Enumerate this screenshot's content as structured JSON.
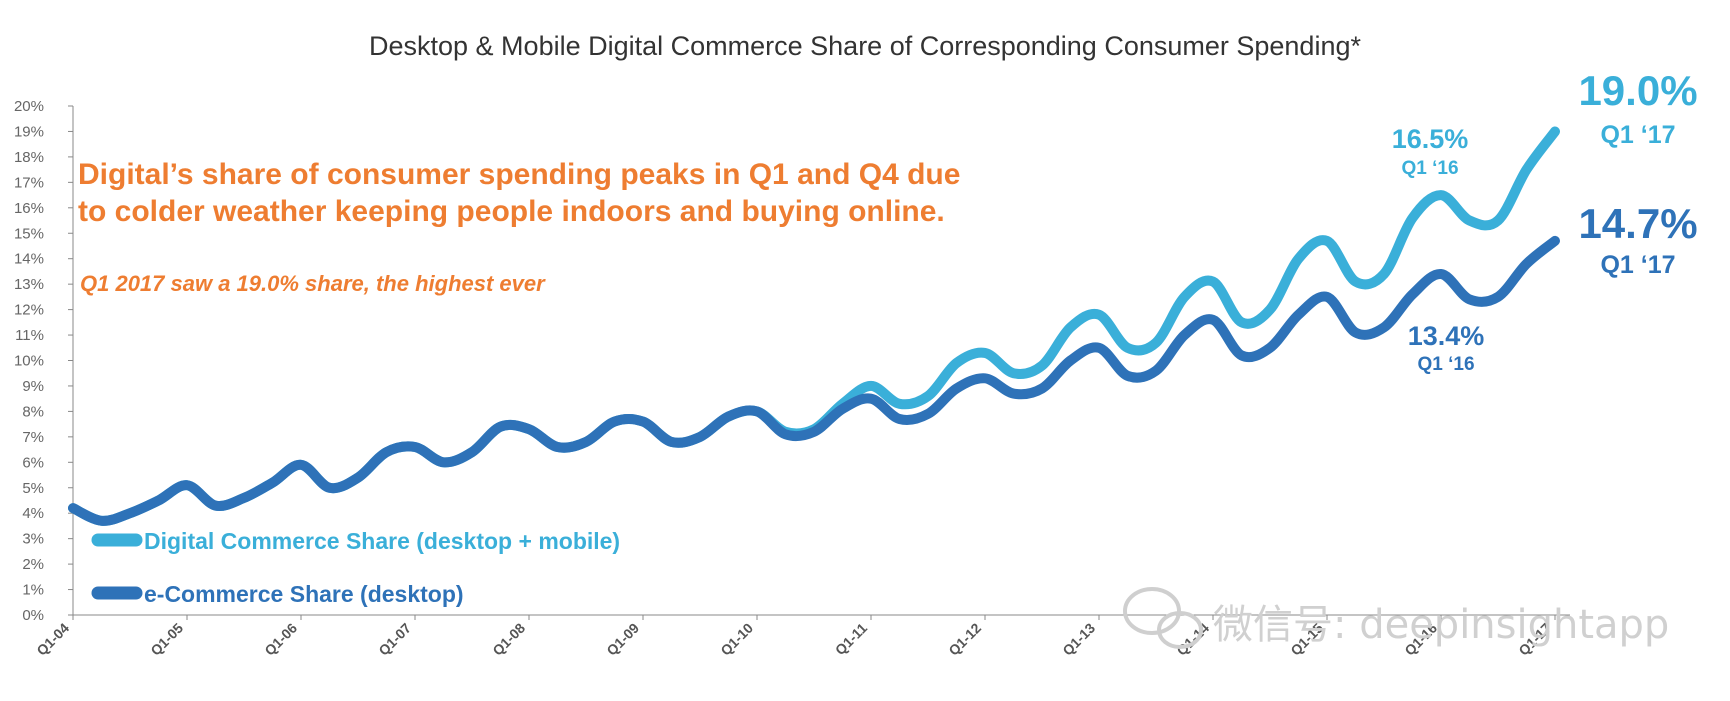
{
  "colors": {
    "digital": "#3aafd9",
    "ecommerce": "#2e72b8",
    "annotation": "#ee7d31",
    "axis": "#888888"
  },
  "annotation": {
    "headline_line1": "Digital’s share of consumer spending peaks in Q1 and Q4 due",
    "headline_line2": "to colder weather keeping people indoors and buying online.",
    "subline": "Q1 2017 saw a 19.0% share, the highest ever"
  },
  "callouts": {
    "digital_q1_16_value": "16.5%",
    "digital_q1_16_label": "Q1 ‘16",
    "digital_q1_17_value": "19.0%",
    "digital_q1_17_label": "Q1 ‘17",
    "ecommerce_q1_16_value": "13.4%",
    "ecommerce_q1_16_label": "Q1 ‘16",
    "ecommerce_q1_17_value": "14.7%",
    "ecommerce_q1_17_label": "Q1 ‘17"
  },
  "watermark": {
    "text": "微信号: deepinsightapp",
    "icon": "wechat-icon"
  },
  "chart_data": {
    "type": "line",
    "title": "Desktop & Mobile Digital Commerce Share of Corresponding Consumer Spending*",
    "xlabel": "",
    "ylabel": "",
    "ylim": [
      0,
      20
    ],
    "yticks": [
      "0%",
      "1%",
      "2%",
      "3%",
      "4%",
      "5%",
      "6%",
      "7%",
      "8%",
      "9%",
      "10%",
      "11%",
      "12%",
      "13%",
      "14%",
      "15%",
      "16%",
      "17%",
      "18%",
      "19%",
      "20%"
    ],
    "xticks": [
      "Q1-04",
      "Q1-05",
      "Q1-06",
      "Q1-07",
      "Q1-08",
      "Q1-09",
      "Q1-10",
      "Q1-11",
      "Q1-12",
      "Q1-13",
      "Q1-14",
      "Q1-15",
      "Q1-16",
      "Q1-17"
    ],
    "grid": false,
    "legend_position": "bottom-left",
    "x": [
      "Q1-04",
      "Q2-04",
      "Q3-04",
      "Q4-04",
      "Q1-05",
      "Q2-05",
      "Q3-05",
      "Q4-05",
      "Q1-06",
      "Q2-06",
      "Q3-06",
      "Q4-06",
      "Q1-07",
      "Q2-07",
      "Q3-07",
      "Q4-07",
      "Q1-08",
      "Q2-08",
      "Q3-08",
      "Q4-08",
      "Q1-09",
      "Q2-09",
      "Q3-09",
      "Q4-09",
      "Q1-10",
      "Q2-10",
      "Q3-10",
      "Q4-10",
      "Q1-11",
      "Q2-11",
      "Q3-11",
      "Q4-11",
      "Q1-12",
      "Q2-12",
      "Q3-12",
      "Q4-12",
      "Q1-13",
      "Q2-13",
      "Q3-13",
      "Q4-13",
      "Q1-14",
      "Q2-14",
      "Q3-14",
      "Q4-14",
      "Q1-15",
      "Q2-15",
      "Q3-15",
      "Q4-15",
      "Q1-16",
      "Q2-16",
      "Q3-16",
      "Q4-16",
      "Q1-17"
    ],
    "series": [
      {
        "name": "Digital Commerce Share (desktop + mobile)",
        "values": [
          4.2,
          3.7,
          4.0,
          4.5,
          5.1,
          4.3,
          4.6,
          5.2,
          5.9,
          5.0,
          5.4,
          6.4,
          6.6,
          6.0,
          6.4,
          7.4,
          7.3,
          6.6,
          6.8,
          7.6,
          7.6,
          6.8,
          7.0,
          7.8,
          8.0,
          7.2,
          7.3,
          8.3,
          9.0,
          8.3,
          8.6,
          9.9,
          10.3,
          9.5,
          9.8,
          11.3,
          11.8,
          10.5,
          10.7,
          12.5,
          13.1,
          11.5,
          12.0,
          14.0,
          14.7,
          13.1,
          13.4,
          15.6,
          16.5,
          15.5,
          15.5,
          17.5,
          19.0
        ]
      },
      {
        "name": "e-Commerce Share (desktop)",
        "values": [
          4.2,
          3.7,
          4.0,
          4.5,
          5.1,
          4.3,
          4.6,
          5.2,
          5.9,
          5.0,
          5.4,
          6.4,
          6.6,
          6.0,
          6.4,
          7.4,
          7.3,
          6.6,
          6.8,
          7.6,
          7.6,
          6.8,
          7.0,
          7.8,
          8.0,
          7.1,
          7.2,
          8.1,
          8.5,
          7.7,
          7.9,
          8.9,
          9.3,
          8.7,
          8.9,
          10.0,
          10.5,
          9.4,
          9.6,
          11.0,
          11.6,
          10.2,
          10.5,
          11.8,
          12.5,
          11.1,
          11.3,
          12.6,
          13.4,
          12.4,
          12.5,
          13.8,
          14.7
        ]
      }
    ]
  }
}
